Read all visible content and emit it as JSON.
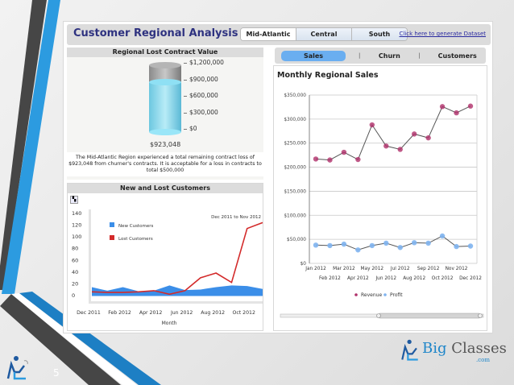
{
  "slide": {
    "number": "5"
  },
  "brand": {
    "name_part1": "Big",
    "name_part2": " Classes",
    "suffix": ".com"
  },
  "header": {
    "title": "Customer Regional Analysis",
    "region_tabs": [
      {
        "label": "Mid-Atlantic",
        "active": true
      },
      {
        "label": "Central",
        "active": false
      },
      {
        "label": "South",
        "active": false
      }
    ],
    "generate_link": "Click here to generate Dataset"
  },
  "lost_contract": {
    "title": "Regional Lost Contract Value",
    "axis_ticks": [
      "$1,200,000",
      "$900,000",
      "$600,000",
      "$300,000",
      "$0"
    ],
    "value_label": "$923,048",
    "note": "The Mid-Atlantic Region experienced a total remaining contract loss of $923,048 from churner's contracts.  It is acceptable for a loss in contracts to total $500,000",
    "colors": {
      "fill": "#7fd3ea",
      "empty": "#9a9a9a"
    }
  },
  "customers": {
    "title": "New and Lost Customers",
    "range_label": "Dec 2011 to Nov 2012",
    "xlabel": "Month",
    "legend": [
      {
        "label": "New Customers",
        "color": "#3b8ee8"
      },
      {
        "label": "Lost Customers",
        "color": "#d32a2a"
      }
    ]
  },
  "sales": {
    "tabs": [
      {
        "label": "Sales",
        "active": true
      },
      {
        "label": "Churn",
        "active": false
      },
      {
        "label": "Customers",
        "active": false
      }
    ],
    "title": "Monthly Regional Sales",
    "legend": [
      {
        "label": "Revenue",
        "color": "#b0306a"
      },
      {
        "label": "Profit",
        "color": "#7fb4f0"
      }
    ]
  },
  "chart_data": [
    {
      "type": "bar",
      "title": "Regional Lost Contract Value",
      "categories": [
        "Mid-Atlantic"
      ],
      "values": [
        923048
      ],
      "ylim": [
        0,
        1200000
      ],
      "yticks": [
        "$0",
        "$300,000",
        "$600,000",
        "$900,000",
        "$1,200,000"
      ],
      "annotations": [
        "$923,048"
      ]
    },
    {
      "type": "area",
      "title": "New and Lost Customers",
      "xlabel": "Month",
      "ylabel": "",
      "ylim": [
        0,
        140
      ],
      "yticks": [
        0,
        20,
        40,
        60,
        80,
        100,
        120,
        140
      ],
      "x": [
        "Dec 2011",
        "Jan 2012",
        "Feb 2012",
        "Mar 2012",
        "Apr 2012",
        "May 2012",
        "Jun 2012",
        "Jul 2012",
        "Aug 2012",
        "Sep 2012",
        "Oct 2012",
        "Nov 2012"
      ],
      "xticks": [
        "Dec 2011",
        "Feb 2012",
        "Apr 2012",
        "Jun 2012",
        "Aug 2012",
        "Oct 2012"
      ],
      "series": [
        {
          "name": "New Customers",
          "values": [
            13,
            7,
            13,
            6,
            7,
            16,
            8,
            9,
            13,
            16,
            15,
            10
          ]
        },
        {
          "name": "Lost Customers",
          "values": [
            5,
            4,
            4,
            5,
            7,
            1,
            7,
            29,
            37,
            21,
            113,
            123
          ]
        }
      ],
      "annotations": [
        "Dec 2011 to Nov 2012"
      ],
      "legend_position": "upper-left"
    },
    {
      "type": "line",
      "title": "Monthly Regional Sales",
      "x": [
        "Jan 2012",
        "Feb 2012",
        "Mar 2012",
        "Apr 2012",
        "May 2012",
        "Jun 2012",
        "Jul 2012",
        "Aug 2012",
        "Sep 2012",
        "Oct 2012",
        "Nov 2012",
        "Dec 2012"
      ],
      "ylim": [
        0,
        350000
      ],
      "yticks": [
        "$0",
        "$50,000",
        "$100,000",
        "$150,000",
        "$200,000",
        "$250,000",
        "$300,000",
        "$350,000"
      ],
      "series": [
        {
          "name": "Revenue",
          "values": [
            217000,
            215000,
            231000,
            216000,
            288000,
            244000,
            237000,
            269000,
            261000,
            326000,
            313000,
            327000
          ]
        },
        {
          "name": "Profit",
          "values": [
            38000,
            37000,
            40000,
            28000,
            37000,
            42000,
            33000,
            43000,
            42000,
            57000,
            35000,
            36000
          ]
        }
      ],
      "grid": true,
      "legend_position": "bottom"
    }
  ]
}
